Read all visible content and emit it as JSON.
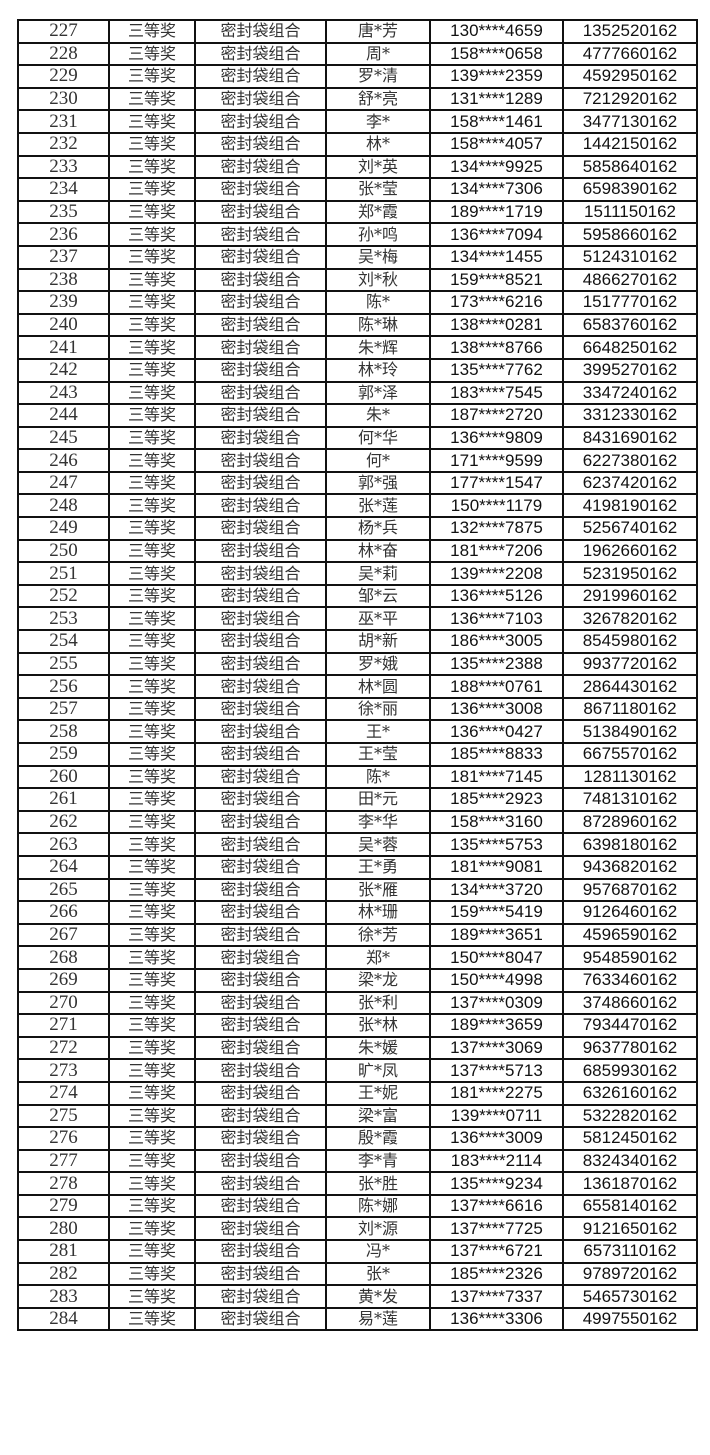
{
  "rows": [
    [
      "227",
      "三等奖",
      "密封袋组合",
      "唐*芳",
      "130****4659",
      "1352520162"
    ],
    [
      "228",
      "三等奖",
      "密封袋组合",
      "周*",
      "158****0658",
      "4777660162"
    ],
    [
      "229",
      "三等奖",
      "密封袋组合",
      "罗*清",
      "139****2359",
      "4592950162"
    ],
    [
      "230",
      "三等奖",
      "密封袋组合",
      "舒*亮",
      "131****1289",
      "7212920162"
    ],
    [
      "231",
      "三等奖",
      "密封袋组合",
      "李*",
      "158****1461",
      "3477130162"
    ],
    [
      "232",
      "三等奖",
      "密封袋组合",
      "林*",
      "158****4057",
      "1442150162"
    ],
    [
      "233",
      "三等奖",
      "密封袋组合",
      "刘*英",
      "134****9925",
      "5858640162"
    ],
    [
      "234",
      "三等奖",
      "密封袋组合",
      "张*莹",
      "134****7306",
      "6598390162"
    ],
    [
      "235",
      "三等奖",
      "密封袋组合",
      "郑*霞",
      "189****1719",
      "1511150162"
    ],
    [
      "236",
      "三等奖",
      "密封袋组合",
      "孙*鸣",
      "136****7094",
      "5958660162"
    ],
    [
      "237",
      "三等奖",
      "密封袋组合",
      "吴*梅",
      "134****1455",
      "5124310162"
    ],
    [
      "238",
      "三等奖",
      "密封袋组合",
      "刘*秋",
      "159****8521",
      "4866270162"
    ],
    [
      "239",
      "三等奖",
      "密封袋组合",
      "陈*",
      "173****6216",
      "1517770162"
    ],
    [
      "240",
      "三等奖",
      "密封袋组合",
      "陈*琳",
      "138****0281",
      "6583760162"
    ],
    [
      "241",
      "三等奖",
      "密封袋组合",
      "朱*辉",
      "138****8766",
      "6648250162"
    ],
    [
      "242",
      "三等奖",
      "密封袋组合",
      "林*玲",
      "135****7762",
      "3995270162"
    ],
    [
      "243",
      "三等奖",
      "密封袋组合",
      "郭*泽",
      "183****7545",
      "3347240162"
    ],
    [
      "244",
      "三等奖",
      "密封袋组合",
      "朱*",
      "187****2720",
      "3312330162"
    ],
    [
      "245",
      "三等奖",
      "密封袋组合",
      "何*华",
      "136****9809",
      "8431690162"
    ],
    [
      "246",
      "三等奖",
      "密封袋组合",
      "何*",
      "171****9599",
      "6227380162"
    ],
    [
      "247",
      "三等奖",
      "密封袋组合",
      "郭*强",
      "177****1547",
      "6237420162"
    ],
    [
      "248",
      "三等奖",
      "密封袋组合",
      "张*莲",
      "150****1179",
      "4198190162"
    ],
    [
      "249",
      "三等奖",
      "密封袋组合",
      "杨*兵",
      "132****7875",
      "5256740162"
    ],
    [
      "250",
      "三等奖",
      "密封袋组合",
      "林*奋",
      "181****7206",
      "1962660162"
    ],
    [
      "251",
      "三等奖",
      "密封袋组合",
      "吴*莉",
      "139****2208",
      "5231950162"
    ],
    [
      "252",
      "三等奖",
      "密封袋组合",
      "邹*云",
      "136****5126",
      "2919960162"
    ],
    [
      "253",
      "三等奖",
      "密封袋组合",
      "巫*平",
      "136****7103",
      "3267820162"
    ],
    [
      "254",
      "三等奖",
      "密封袋组合",
      "胡*新",
      "186****3005",
      "8545980162"
    ],
    [
      "255",
      "三等奖",
      "密封袋组合",
      "罗*娥",
      "135****2388",
      "9937720162"
    ],
    [
      "256",
      "三等奖",
      "密封袋组合",
      "林*圆",
      "188****0761",
      "2864430162"
    ],
    [
      "257",
      "三等奖",
      "密封袋组合",
      "徐*丽",
      "136****3008",
      "8671180162"
    ],
    [
      "258",
      "三等奖",
      "密封袋组合",
      "王*",
      "136****0427",
      "5138490162"
    ],
    [
      "259",
      "三等奖",
      "密封袋组合",
      "王*莹",
      "185****8833",
      "6675570162"
    ],
    [
      "260",
      "三等奖",
      "密封袋组合",
      "陈*",
      "181****7145",
      "1281130162"
    ],
    [
      "261",
      "三等奖",
      "密封袋组合",
      "田*元",
      "185****2923",
      "7481310162"
    ],
    [
      "262",
      "三等奖",
      "密封袋组合",
      "李*华",
      "158****3160",
      "8728960162"
    ],
    [
      "263",
      "三等奖",
      "密封袋组合",
      "吴*蓉",
      "135****5753",
      "6398180162"
    ],
    [
      "264",
      "三等奖",
      "密封袋组合",
      "王*勇",
      "181****9081",
      "9436820162"
    ],
    [
      "265",
      "三等奖",
      "密封袋组合",
      "张*雁",
      "134****3720",
      "9576870162"
    ],
    [
      "266",
      "三等奖",
      "密封袋组合",
      "林*珊",
      "159****5419",
      "9126460162"
    ],
    [
      "267",
      "三等奖",
      "密封袋组合",
      "徐*芳",
      "189****3651",
      "4596590162"
    ],
    [
      "268",
      "三等奖",
      "密封袋组合",
      "郑*",
      "150****8047",
      "9548590162"
    ],
    [
      "269",
      "三等奖",
      "密封袋组合",
      "梁*龙",
      "150****4998",
      "7633460162"
    ],
    [
      "270",
      "三等奖",
      "密封袋组合",
      "张*利",
      "137****0309",
      "3748660162"
    ],
    [
      "271",
      "三等奖",
      "密封袋组合",
      "张*林",
      "189****3659",
      "7934470162"
    ],
    [
      "272",
      "三等奖",
      "密封袋组合",
      "朱*媛",
      "137****3069",
      "9637780162"
    ],
    [
      "273",
      "三等奖",
      "密封袋组合",
      "旷*凤",
      "137****5713",
      "6859930162"
    ],
    [
      "274",
      "三等奖",
      "密封袋组合",
      "王*妮",
      "181****2275",
      "6326160162"
    ],
    [
      "275",
      "三等奖",
      "密封袋组合",
      "梁*富",
      "139****0711",
      "5322820162"
    ],
    [
      "276",
      "三等奖",
      "密封袋组合",
      "殷*霞",
      "136****3009",
      "5812450162"
    ],
    [
      "277",
      "三等奖",
      "密封袋组合",
      "李*青",
      "183****2114",
      "8324340162"
    ],
    [
      "278",
      "三等奖",
      "密封袋组合",
      "张*胜",
      "135****9234",
      "1361870162"
    ],
    [
      "279",
      "三等奖",
      "密封袋组合",
      "陈*娜",
      "137****6616",
      "6558140162"
    ],
    [
      "280",
      "三等奖",
      "密封袋组合",
      "刘*源",
      "137****7725",
      "9121650162"
    ],
    [
      "281",
      "三等奖",
      "密封袋组合",
      "冯*",
      "137****6721",
      "6573110162"
    ],
    [
      "282",
      "三等奖",
      "密封袋组合",
      "张*",
      "185****2326",
      "9789720162"
    ],
    [
      "283",
      "三等奖",
      "密封袋组合",
      "黄*发",
      "137****7337",
      "5465730162"
    ],
    [
      "284",
      "三等奖",
      "密封袋组合",
      "易*莲",
      "136****3306",
      "4997550162"
    ]
  ]
}
